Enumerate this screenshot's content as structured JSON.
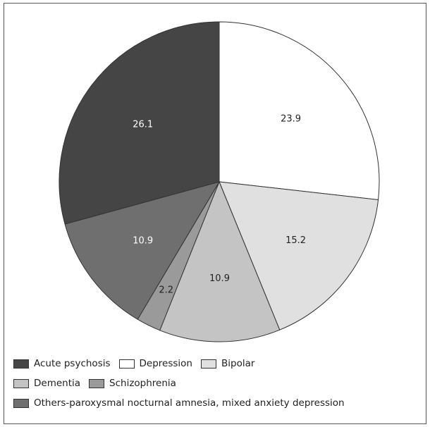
{
  "chart_data": {
    "type": "pie",
    "title": "",
    "slices": [
      {
        "label": "Depression",
        "value": 23.9,
        "value_label": "23.9",
        "color": "#ffffff",
        "text_color": "#222222"
      },
      {
        "label": "Bipolar",
        "value": 15.2,
        "value_label": "15.2",
        "color": "#e0e0e0",
        "text_color": "#222222"
      },
      {
        "label": "Dementia",
        "value": 10.9,
        "value_label": "10.9",
        "color": "#c4c4c4",
        "text_color": "#222222"
      },
      {
        "label": "Schizophrenia",
        "value": 2.2,
        "value_label": "2.2",
        "color": "#9a9a9a",
        "text_color": "#222222"
      },
      {
        "label": "Others-paroxysmal nocturnal amnesia, mixed anxiety depression",
        "value": 10.9,
        "value_label": "10.9",
        "color": "#6f6f6f",
        "text_color": "#ffffff"
      },
      {
        "label": "Acute psychosis",
        "value": 26.1,
        "value_label": "26.1",
        "color": "#454545",
        "text_color": "#ffffff"
      }
    ],
    "legend": {
      "placement": "bottom",
      "rows": [
        [
          "Acute psychosis",
          "Depression",
          "Bipolar"
        ],
        [
          "Dementia",
          "Schizophrenia"
        ],
        [
          "Others-paroxysmal nocturnal amnesia, mixed anxiety depression"
        ]
      ]
    }
  }
}
